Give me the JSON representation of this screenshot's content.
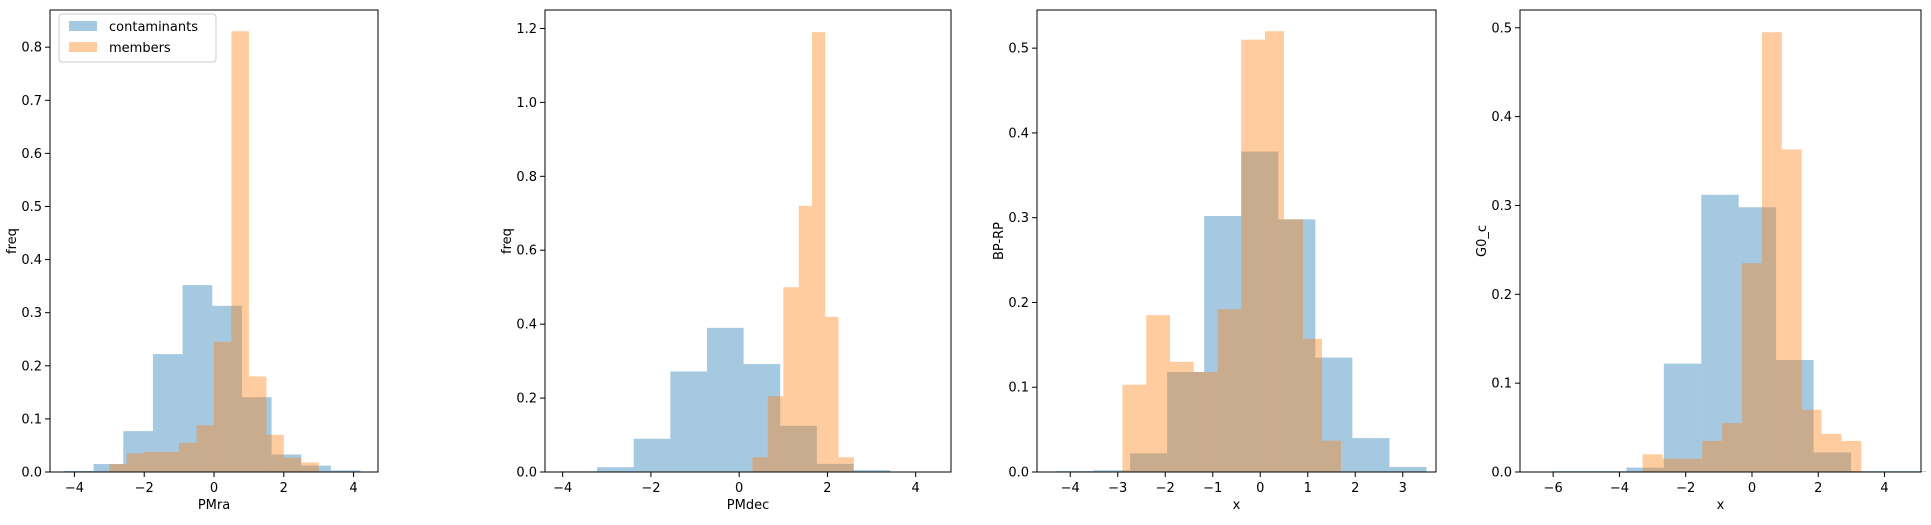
{
  "colors": {
    "contaminants": "#1f77b4",
    "members": "#ff7f0e",
    "bar_opacity": 0.4
  },
  "legend": {
    "placement": "top-left",
    "entries": [
      "contaminants",
      "members"
    ]
  },
  "chart_data": [
    {
      "type": "bar",
      "xlabel": "PMra",
      "ylabel": "freq",
      "xlim": [
        -4.7,
        4.7
      ],
      "ylim": [
        0,
        0.87
      ],
      "xticks": [
        -4,
        -2,
        0,
        2,
        4
      ],
      "yticks": [
        0.0,
        0.1,
        0.2,
        0.3,
        0.4,
        0.5,
        0.6,
        0.7,
        0.8
      ],
      "series": [
        {
          "name": "contaminants",
          "bin_edges": [
            -4.3,
            -3.45,
            -2.6,
            -1.75,
            -0.9,
            -0.05,
            0.8,
            1.65,
            2.5,
            3.35,
            4.2
          ],
          "values": [
            0.002,
            0.015,
            0.077,
            0.222,
            0.352,
            0.313,
            0.141,
            0.033,
            0.012,
            0.003
          ]
        },
        {
          "name": "members",
          "bin_edges": [
            -3.0,
            -2.5,
            -2.0,
            -1.5,
            -1.0,
            -0.5,
            0.0,
            0.5,
            1.0,
            1.5,
            2.0,
            2.5,
            3.0
          ],
          "values": [
            0.015,
            0.035,
            0.038,
            0.038,
            0.055,
            0.088,
            0.245,
            0.83,
            0.18,
            0.07,
            0.027,
            0.018
          ]
        }
      ]
    },
    {
      "type": "bar",
      "xlabel": "PMdec",
      "ylabel": "freq",
      "xlim": [
        -4.4,
        4.8
      ],
      "ylim": [
        0,
        1.25
      ],
      "xticks": [
        -4,
        -2,
        0,
        2,
        4
      ],
      "yticks": [
        0.0,
        0.2,
        0.4,
        0.6,
        0.8,
        1.0,
        1.2
      ],
      "series": [
        {
          "name": "contaminants",
          "bin_edges": [
            -4.05,
            -3.22,
            -2.39,
            -1.56,
            -0.73,
            0.1,
            0.93,
            1.76,
            2.59,
            3.42,
            4.25
          ],
          "values": [
            0.002,
            0.013,
            0.09,
            0.272,
            0.39,
            0.292,
            0.125,
            0.022,
            0.005,
            0.001
          ]
        },
        {
          "name": "members",
          "bin_edges": [
            0.3,
            0.65,
            1.0,
            1.35,
            1.65,
            1.95,
            2.25,
            2.6
          ],
          "values": [
            0.04,
            0.205,
            0.5,
            0.72,
            1.19,
            0.42,
            0.04
          ]
        }
      ]
    },
    {
      "type": "bar",
      "xlabel": "x",
      "ylabel": "BP-RP",
      "xlim": [
        -4.7,
        3.7
      ],
      "ylim": [
        0,
        0.545
      ],
      "xticks": [
        -4,
        -3,
        -2,
        -1,
        0,
        1,
        2,
        3
      ],
      "yticks": [
        0.0,
        0.1,
        0.2,
        0.3,
        0.4,
        0.5
      ],
      "series": [
        {
          "name": "contaminants",
          "bin_edges": [
            -4.3,
            -3.52,
            -2.74,
            -1.96,
            -1.18,
            -0.4,
            0.38,
            1.16,
            1.94,
            2.72,
            3.5
          ],
          "values": [
            0.001,
            0.002,
            0.022,
            0.118,
            0.302,
            0.378,
            0.298,
            0.135,
            0.04,
            0.006
          ]
        },
        {
          "name": "members",
          "bin_edges": [
            -2.9,
            -2.4,
            -1.9,
            -1.4,
            -0.9,
            -0.4,
            0.1,
            0.5,
            0.9,
            1.3,
            1.7
          ],
          "values": [
            0.103,
            0.185,
            0.13,
            0.118,
            0.192,
            0.51,
            0.52,
            0.298,
            0.157,
            0.037
          ]
        }
      ]
    },
    {
      "type": "bar",
      "xlabel": "x",
      "ylabel": "G0_c",
      "xlim": [
        -7.0,
        5.1
      ],
      "ylim": [
        0,
        0.52
      ],
      "xticks": [
        -6,
        -4,
        -2,
        0,
        2,
        4
      ],
      "yticks": [
        0.0,
        0.1,
        0.2,
        0.3,
        0.4,
        0.5
      ],
      "series": [
        {
          "name": "contaminants",
          "bin_edges": [
            -6.05,
            -4.92,
            -3.79,
            -2.66,
            -1.53,
            -0.4,
            0.73,
            1.86,
            2.99,
            4.12,
            5.25
          ],
          "values": [
            0.001,
            0.001,
            0.005,
            0.122,
            0.312,
            0.298,
            0.126,
            0.022,
            0.001,
            0.001
          ]
        },
        {
          "name": "members",
          "bin_edges": [
            -3.3,
            -2.7,
            -2.1,
            -1.5,
            -0.9,
            -0.3,
            0.3,
            0.9,
            1.5,
            2.1,
            2.7,
            3.3,
            3.9
          ],
          "values": [
            0.02,
            0.015,
            0.015,
            0.035,
            0.055,
            0.235,
            0.495,
            0.363,
            0.07,
            0.043,
            0.035,
            0.0
          ]
        }
      ]
    }
  ]
}
